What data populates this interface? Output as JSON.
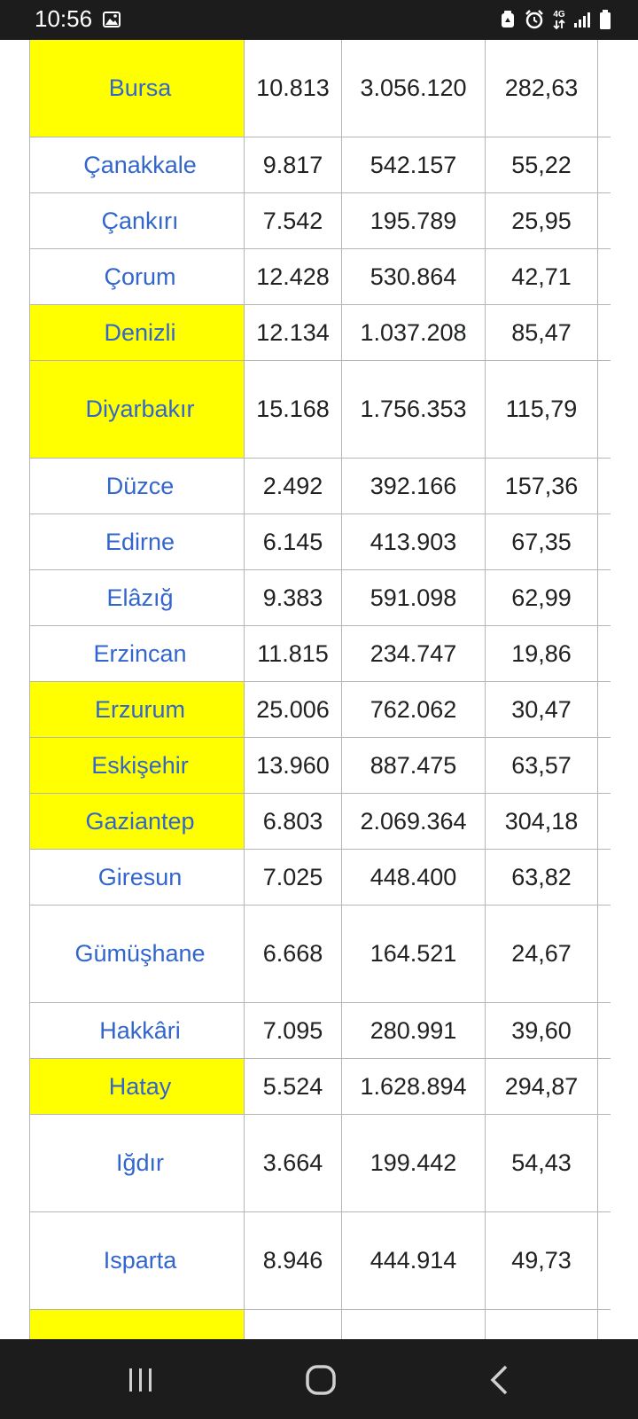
{
  "status_bar": {
    "time": "10:56",
    "icons": [
      "gallery-icon",
      "recycle-icon",
      "alarm-icon",
      "network-4g-icon",
      "signal-icon",
      "battery-icon"
    ],
    "network_label": "4G"
  },
  "table": {
    "rows": [
      {
        "name": "Bursa",
        "area": "10.813",
        "population": "3.056.120",
        "density": "282,63",
        "highlight": true,
        "tall": true
      },
      {
        "name": "Çanakkale",
        "area": "9.817",
        "population": "542.157",
        "density": "55,22",
        "highlight": false,
        "tall": false
      },
      {
        "name": "Çankırı",
        "area": "7.542",
        "population": "195.789",
        "density": "25,95",
        "highlight": false,
        "tall": false
      },
      {
        "name": "Çorum",
        "area": "12.428",
        "population": "530.864",
        "density": "42,71",
        "highlight": false,
        "tall": false
      },
      {
        "name": "Denizli",
        "area": "12.134",
        "population": "1.037.208",
        "density": "85,47",
        "highlight": true,
        "tall": false
      },
      {
        "name": "Diyarbakır",
        "area": "15.168",
        "population": "1.756.353",
        "density": "115,79",
        "highlight": true,
        "tall": true
      },
      {
        "name": "Düzce",
        "area": "2.492",
        "population": "392.166",
        "density": "157,36",
        "highlight": false,
        "tall": false
      },
      {
        "name": "Edirne",
        "area": "6.145",
        "population": "413.903",
        "density": "67,35",
        "highlight": false,
        "tall": false
      },
      {
        "name": "Elâzığ",
        "area": "9.383",
        "population": "591.098",
        "density": "62,99",
        "highlight": false,
        "tall": false
      },
      {
        "name": "Erzincan",
        "area": "11.815",
        "population": "234.747",
        "density": "19,86",
        "highlight": false,
        "tall": false
      },
      {
        "name": "Erzurum",
        "area": "25.006",
        "population": "762.062",
        "density": "30,47",
        "highlight": true,
        "tall": false
      },
      {
        "name": "Eskişehir",
        "area": "13.960",
        "population": "887.475",
        "density": "63,57",
        "highlight": true,
        "tall": false
      },
      {
        "name": "Gaziantep",
        "area": "6.803",
        "population": "2.069.364",
        "density": "304,18",
        "highlight": true,
        "tall": false
      },
      {
        "name": "Giresun",
        "area": "7.025",
        "population": "448.400",
        "density": "63,82",
        "highlight": false,
        "tall": false
      },
      {
        "name": "Gümüşhane",
        "area": "6.668",
        "population": "164.521",
        "density": "24,67",
        "highlight": false,
        "tall": true
      },
      {
        "name": "Hakkâri",
        "area": "7.095",
        "population": "280.991",
        "density": "39,60",
        "highlight": false,
        "tall": false
      },
      {
        "name": "Hatay",
        "area": "5.524",
        "population": "1.628.894",
        "density": "294,87",
        "highlight": true,
        "tall": false
      },
      {
        "name": "Iğdır",
        "area": "3.664",
        "population": "199.442",
        "density": "54,43",
        "highlight": false,
        "tall": true
      },
      {
        "name": "Isparta",
        "area": "8.946",
        "population": "444.914",
        "density": "49,73",
        "highlight": false,
        "tall": true
      }
    ],
    "next_row_highlight": true,
    "colors": {
      "highlight": "#ffff00",
      "link": "#3366cc",
      "border": "#b5b5b5",
      "text": "#202122"
    }
  },
  "nav_bar": {
    "buttons": [
      "recent-apps-icon",
      "home-icon",
      "back-icon"
    ]
  }
}
